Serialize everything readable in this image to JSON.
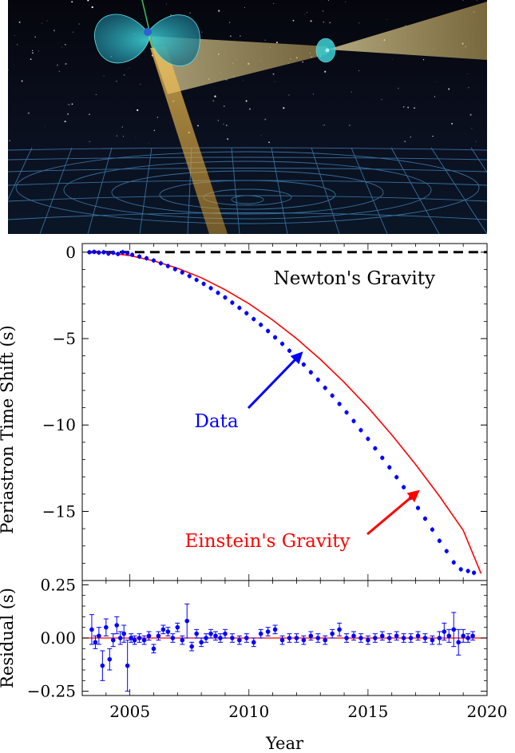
{
  "illustration": {
    "icon": "binary-pulsar-spacetime-illustration"
  },
  "chart_data": [
    {
      "type": "scatter",
      "panel": "top",
      "ylabel": "Periastron Time Shift (s)",
      "xlim": [
        2003,
        2020
      ],
      "ylim": [
        -19,
        0.5
      ],
      "yticks": [
        0,
        -5,
        -10,
        -15
      ],
      "series": [
        {
          "name": "Newton's Gravity",
          "kind": "line",
          "color": "#000000",
          "dash": true,
          "x": [
            2003.3,
            2020
          ],
          "y": [
            0,
            0
          ]
        },
        {
          "name": "Einstein's Gravity",
          "kind": "line",
          "color": "#ff0000",
          "x": [
            2003.3,
            2004,
            2005,
            2006,
            2007,
            2008,
            2009,
            2010,
            2011,
            2012,
            2013,
            2014,
            2015,
            2016,
            2017,
            2018,
            2019,
            2019.75
          ],
          "y": [
            0.0,
            -0.03,
            -0.2,
            -0.5,
            -0.93,
            -1.48,
            -2.17,
            -2.98,
            -3.93,
            -5.0,
            -6.2,
            -7.53,
            -8.98,
            -10.57,
            -12.28,
            -14.12,
            -16.1,
            -18.6
          ]
        },
        {
          "name": "Data",
          "kind": "points",
          "color": "#0000ff",
          "x": [
            2003.3,
            2003.5,
            2003.7,
            2003.9,
            2004.1,
            2004.3,
            2004.5,
            2004.7,
            2004.9,
            2005.1,
            2005.4,
            2005.7,
            2006.0,
            2006.3,
            2006.6,
            2006.9,
            2007.2,
            2007.5,
            2007.8,
            2008.1,
            2008.4,
            2008.7,
            2009.0,
            2009.3,
            2009.6,
            2009.9,
            2010.2,
            2010.5,
            2010.8,
            2011.1,
            2011.4,
            2011.7,
            2012.0,
            2012.3,
            2012.6,
            2012.9,
            2013.2,
            2013.5,
            2013.8,
            2014.1,
            2014.4,
            2014.7,
            2015.0,
            2015.3,
            2015.6,
            2015.9,
            2016.2,
            2016.5,
            2016.8,
            2017.1,
            2017.4,
            2017.7,
            2018.0,
            2018.3,
            2018.6,
            2018.9,
            2019.2,
            2019.45
          ],
          "y": [
            0.0,
            0.02,
            -0.02,
            0.0,
            -0.08,
            -0.03,
            -0.1,
            0.0,
            -0.05,
            -0.15,
            -0.25,
            -0.35,
            -0.48,
            -0.64,
            -0.8,
            -0.98,
            -1.17,
            -1.38,
            -1.6,
            -1.83,
            -2.08,
            -2.35,
            -2.62,
            -2.92,
            -3.22,
            -3.53,
            -3.87,
            -4.2,
            -4.56,
            -4.93,
            -5.3,
            -5.7,
            -6.1,
            -6.5,
            -6.95,
            -7.38,
            -7.85,
            -8.3,
            -8.78,
            -9.27,
            -9.77,
            -10.3,
            -10.8,
            -11.35,
            -11.9,
            -12.45,
            -13.02,
            -13.6,
            -14.2,
            -14.8,
            -15.42,
            -16.05,
            -16.7,
            -17.3,
            -17.95,
            -18.35,
            -18.45,
            -18.55
          ]
        }
      ],
      "annotations": [
        {
          "text": "Newton's Gravity",
          "color": "#000000"
        },
        {
          "text": "Data",
          "color": "#0000ff",
          "arrow_to": [
            2012.2,
            -5.85
          ]
        },
        {
          "text": "Einstein's Gravity",
          "color": "#ff0000",
          "arrow_to": [
            2017.1,
            -13.85
          ]
        }
      ]
    },
    {
      "type": "scatter",
      "panel": "bottom",
      "xlabel": "Year",
      "ylabel": "Residual (s)",
      "xlim": [
        2003,
        2020
      ],
      "ylim": [
        -0.27,
        0.27
      ],
      "xticks": [
        2005,
        2010,
        2015,
        2020
      ],
      "xticklabels": [
        "2005",
        "2010",
        "2015",
        "2020"
      ],
      "yticks": [
        0.25,
        0.0,
        -0.25
      ],
      "yticklabels": [
        "0.25",
        "0.00",
        "−0.25"
      ],
      "series": [
        {
          "name": "Zero",
          "kind": "line",
          "color": "#ff0000",
          "x": [
            2003,
            2020
          ],
          "y": [
            0,
            0
          ]
        },
        {
          "name": "Residuals",
          "kind": "points",
          "color": "#0000ff",
          "x": [
            2003.4,
            2003.55,
            2003.7,
            2003.85,
            2004.0,
            2004.15,
            2004.3,
            2004.45,
            2004.6,
            2004.75,
            2004.9,
            2005.05,
            2005.2,
            2005.4,
            2005.6,
            2005.8,
            2006.0,
            2006.2,
            2006.4,
            2006.6,
            2006.8,
            2007.0,
            2007.2,
            2007.4,
            2007.6,
            2007.8,
            2008.0,
            2008.2,
            2008.4,
            2008.6,
            2008.8,
            2009.0,
            2009.3,
            2009.6,
            2009.9,
            2010.2,
            2010.5,
            2010.8,
            2011.1,
            2011.4,
            2011.7,
            2012.0,
            2012.3,
            2012.6,
            2012.9,
            2013.2,
            2013.5,
            2013.8,
            2014.1,
            2014.4,
            2014.7,
            2015.0,
            2015.3,
            2015.6,
            2015.9,
            2016.2,
            2016.5,
            2016.8,
            2017.1,
            2017.4,
            2017.7,
            2018.0,
            2018.2,
            2018.4,
            2018.6,
            2018.8,
            2019.0,
            2019.2,
            2019.4
          ],
          "y": [
            0.04,
            -0.02,
            0.01,
            -0.13,
            0.05,
            -0.1,
            -0.01,
            0.06,
            0.0,
            0.02,
            -0.13,
            0.0,
            -0.01,
            0.0,
            -0.01,
            0.01,
            -0.05,
            0.01,
            0.04,
            0.03,
            0.0,
            0.05,
            -0.01,
            0.08,
            -0.04,
            0.02,
            -0.02,
            0.0,
            0.02,
            0.01,
            0.0,
            0.02,
            0.0,
            -0.01,
            0.0,
            -0.02,
            0.02,
            0.03,
            0.04,
            -0.01,
            0.0,
            0.0,
            -0.01,
            0.01,
            0.0,
            -0.01,
            0.02,
            0.04,
            0.0,
            0.01,
            0.0,
            -0.01,
            0.0,
            0.01,
            0.0,
            0.01,
            0.0,
            0.0,
            0.01,
            0.0,
            -0.01,
            0.0,
            0.03,
            0.01,
            0.04,
            -0.02,
            0.01,
            0.0,
            0.01
          ],
          "yerr": [
            0.07,
            0.03,
            0.04,
            0.07,
            0.04,
            0.05,
            0.03,
            0.04,
            0.03,
            0.04,
            0.12,
            0.02,
            0.02,
            0.02,
            0.02,
            0.02,
            0.02,
            0.02,
            0.02,
            0.02,
            0.02,
            0.02,
            0.02,
            0.08,
            0.02,
            0.02,
            0.02,
            0.02,
            0.02,
            0.02,
            0.02,
            0.02,
            0.02,
            0.02,
            0.02,
            0.02,
            0.02,
            0.02,
            0.02,
            0.02,
            0.02,
            0.02,
            0.02,
            0.02,
            0.02,
            0.02,
            0.02,
            0.03,
            0.02,
            0.02,
            0.02,
            0.02,
            0.02,
            0.02,
            0.02,
            0.02,
            0.02,
            0.02,
            0.02,
            0.02,
            0.02,
            0.03,
            0.04,
            0.03,
            0.08,
            0.06,
            0.03,
            0.02,
            0.02
          ]
        }
      ]
    }
  ]
}
